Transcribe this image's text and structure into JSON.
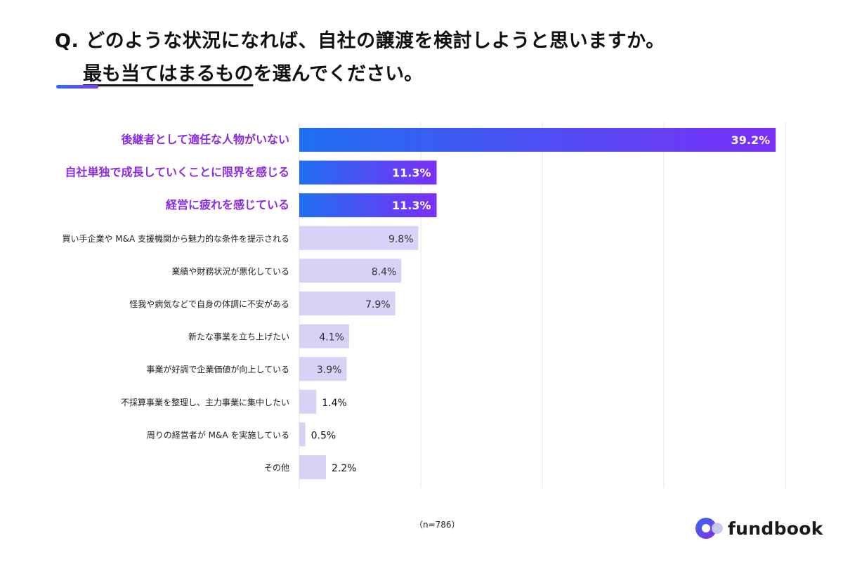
{
  "question": {
    "prefix": "Q. ",
    "line1": "どのような状況になれば、自社の譲渡を検討しようと思いますか。",
    "line2_underlined": "最も当てはまるもの",
    "line2_rest": "を選んでください。"
  },
  "chart_data": {
    "type": "bar",
    "orientation": "horizontal",
    "unit": "%",
    "xlim": [
      0,
      40
    ],
    "grid": true,
    "categories": [
      "後継者として適任な人物がいない",
      "自社単独で成長していくことに限界を感じる",
      "経営に疲れを感じている",
      "買い手企業や M&A 支援機関から魅力的な条件を提示される",
      "業績や財務状況が悪化している",
      "怪我や病気などで自身の体調に不安がある",
      "新たな事業を立ち上げたい",
      "事業が好調で企業価値が向上している",
      "不採算事業を整理し、主力事業に集中したい",
      "周りの経営者が M&A を実施している",
      "その他"
    ],
    "values": [
      39.2,
      11.3,
      11.3,
      9.8,
      8.4,
      7.9,
      4.1,
      3.9,
      1.4,
      0.5,
      2.2
    ],
    "highlighted": [
      true,
      true,
      true,
      false,
      false,
      false,
      false,
      false,
      false,
      false,
      false
    ],
    "colors": {
      "highlight_start": "#1f6ff0",
      "highlight_end": "#7b2ff7",
      "highlight_label": "#8a2be2",
      "regular_bar": "#d7d2f6",
      "grid": "#e6e6ea"
    }
  },
  "sample_note": "（n=786）",
  "brand": {
    "name": "fundbook"
  }
}
